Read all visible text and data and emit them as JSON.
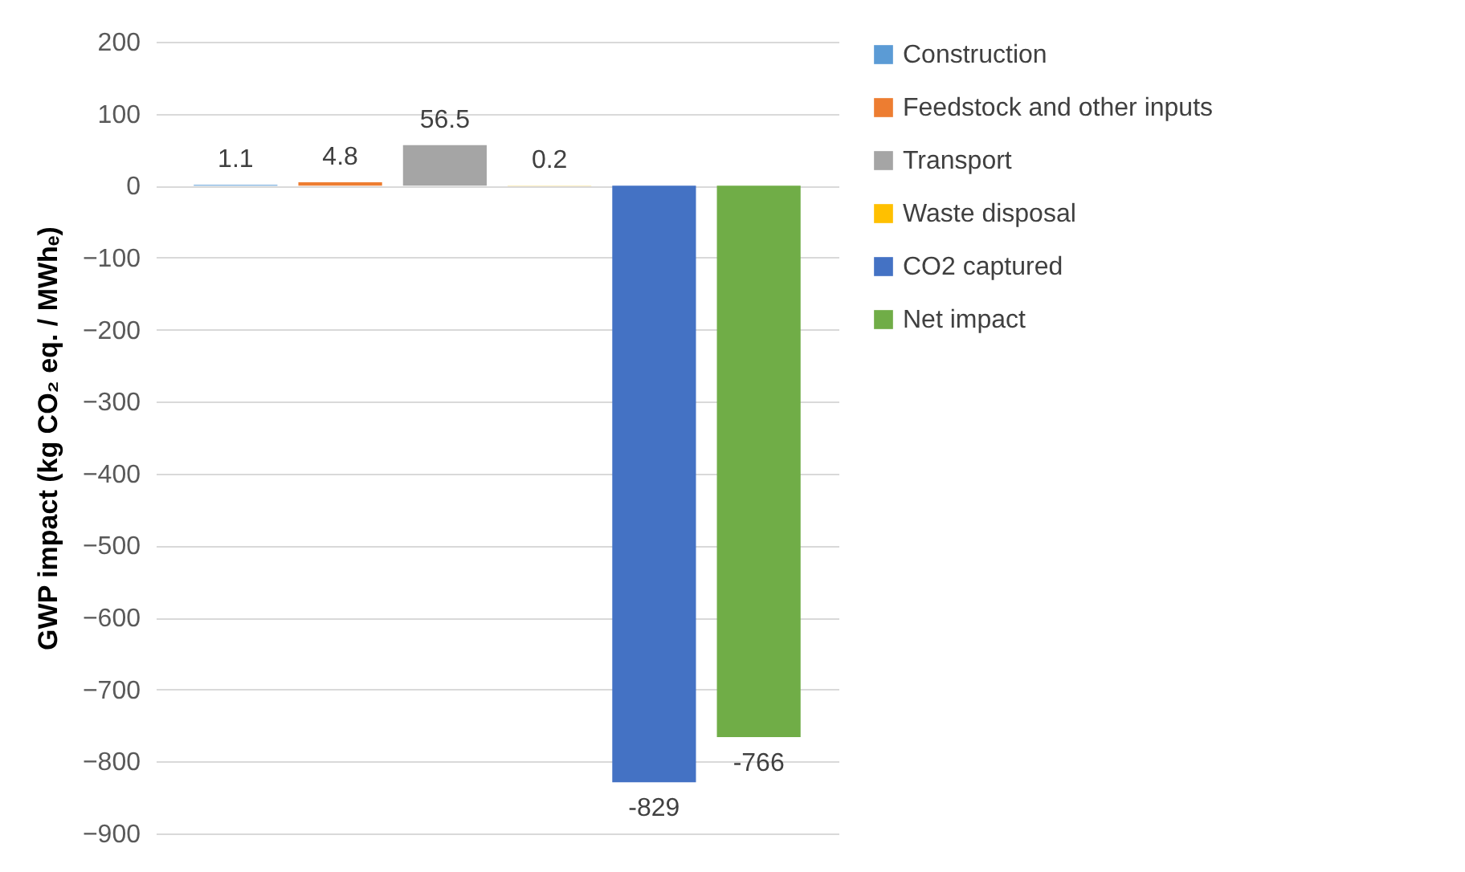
{
  "chart_data": {
    "type": "bar",
    "ylabel": "GWP impact (kg CO₂ eq. / MWhₑ)",
    "categories": [
      null
    ],
    "series": [
      {
        "name": "Construction",
        "color": "#5b9bd5",
        "values": [
          1.1
        ]
      },
      {
        "name": "Feedstock and other inputs",
        "color": "#ed7d31",
        "values": [
          4.8
        ]
      },
      {
        "name": "Transport",
        "color": "#a5a5a5",
        "values": [
          56.5
        ]
      },
      {
        "name": "Waste disposal",
        "color": "#ffc000",
        "values": [
          0.2
        ]
      },
      {
        "name": "CO2 captured",
        "color": "#4472c4",
        "values": [
          -829
        ]
      },
      {
        "name": "Net impact",
        "color": "#70ad47",
        "values": [
          -766
        ]
      }
    ],
    "ylim": [
      -900,
      200
    ],
    "yticks": [
      -900,
      -800,
      -700,
      -600,
      -500,
      -400,
      -300,
      -200,
      -100,
      0,
      100,
      200
    ],
    "grid": "y",
    "legend": "right",
    "data_labels": true
  }
}
